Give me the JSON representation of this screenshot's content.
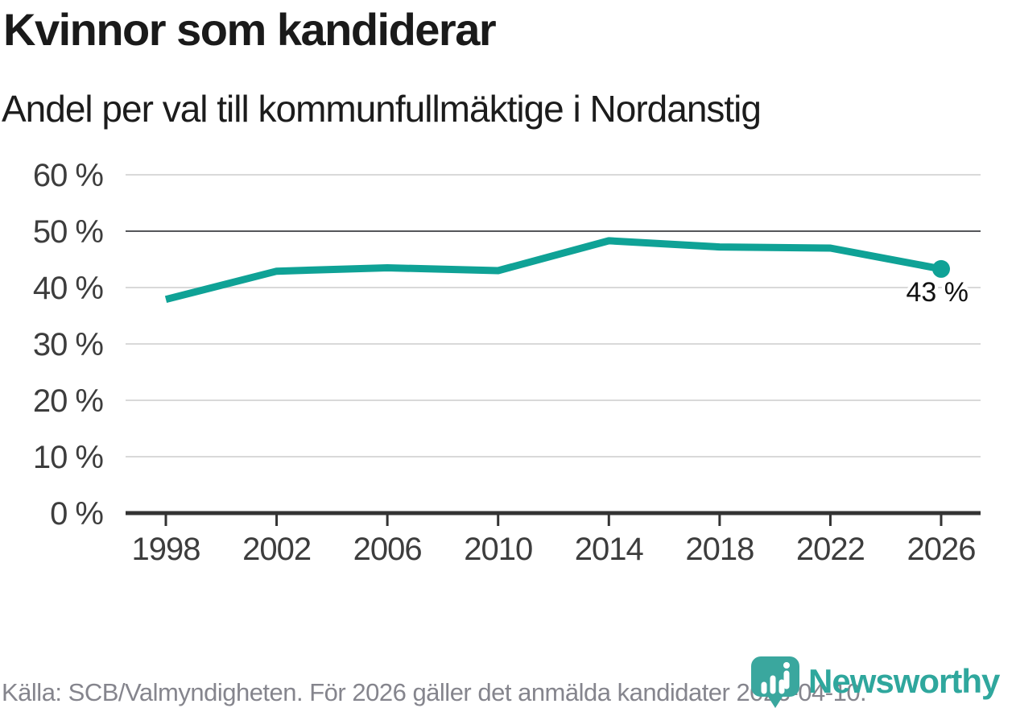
{
  "header": {
    "title": "Kvinnor som kandiderar",
    "subtitle": "Andel per val till kommunfullmäktige i Nordanstig"
  },
  "chart_data": {
    "type": "line",
    "title": "Kvinnor som kandiderar",
    "subtitle": "Andel per val till kommunfullmäktige i Nordanstig",
    "x": [
      1998,
      2002,
      2006,
      2010,
      2014,
      2018,
      2022,
      2026
    ],
    "x_tick_labels": [
      "1998",
      "2002",
      "2006",
      "2010",
      "2014",
      "2018",
      "2022",
      "2026"
    ],
    "values": [
      37.9,
      42.9,
      43.5,
      43.0,
      48.3,
      47.2,
      47.0,
      43.3
    ],
    "end_point_label": "43 %",
    "ylim": [
      0,
      60
    ],
    "yticks": [
      0,
      10,
      20,
      30,
      40,
      50,
      60
    ],
    "ytick_labels": [
      "0 %",
      "10 %",
      "20 %",
      "30 %",
      "40 %",
      "50 %",
      "60 %"
    ],
    "grid": true,
    "emphasized_gridline": 50,
    "legend_position": "none",
    "line_color": "#0fa296"
  },
  "footer": {
    "source": "Källa: SCB/Valmyndigheten. För 2026 gäller det anmälda kandidater 2026-04-10.",
    "brand": "Newsworthy"
  },
  "icons": {
    "logo": "newsworthy-speech-bubble-bar-chart-icon"
  },
  "colors": {
    "line": "#0fa296",
    "logo_teal": "#3aa79e",
    "wordmark_teal": "#2fa79d",
    "title_text": "#1a1a1a",
    "axis_text": "#3d3d3d",
    "gridline": "#d9d9d9",
    "gridline_emphasis": "#55565a",
    "axis_line": "#333333",
    "value_label": "#111111",
    "footer_text": "#85858d"
  }
}
